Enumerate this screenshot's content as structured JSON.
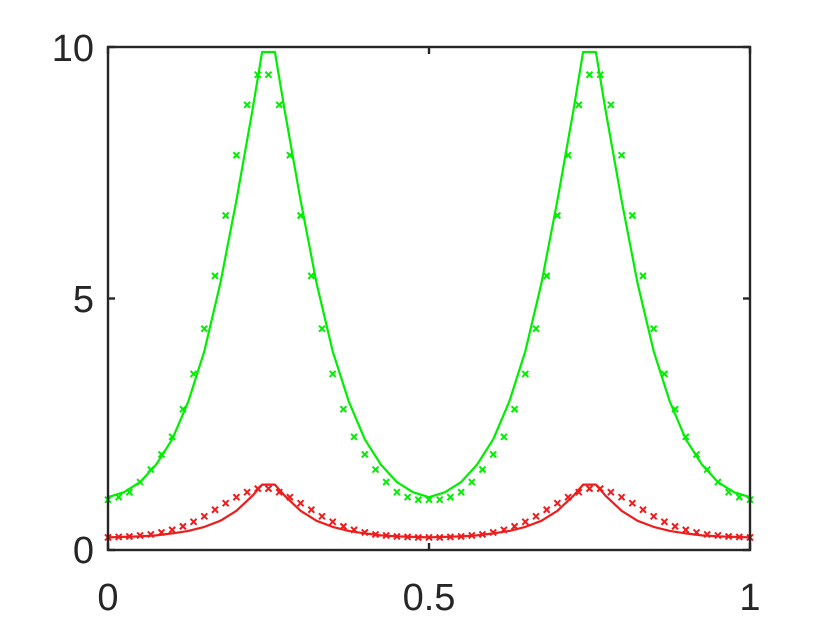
{
  "chart_data": {
    "type": "line",
    "title": "",
    "xlabel": "",
    "ylabel": "",
    "xlim": [
      0,
      1
    ],
    "ylim": [
      0,
      10
    ],
    "xticks": [
      0,
      0.5,
      1
    ],
    "xtick_labels": [
      "0",
      "0.5",
      "1"
    ],
    "yticks": [
      0,
      5,
      10
    ],
    "ytick_labels": [
      "0",
      "5",
      "10"
    ],
    "grid": false,
    "box": true,
    "series": [
      {
        "color": "#00ee00",
        "style": "solid line",
        "x": [
          0.0,
          0.025,
          0.05,
          0.075,
          0.1,
          0.125,
          0.15,
          0.175,
          0.2,
          0.225,
          0.24,
          0.26,
          0.275,
          0.3,
          0.325,
          0.35,
          0.375,
          0.4,
          0.425,
          0.45,
          0.475,
          0.5,
          0.525,
          0.55,
          0.575,
          0.6,
          0.625,
          0.65,
          0.675,
          0.7,
          0.725,
          0.74,
          0.76,
          0.775,
          0.8,
          0.825,
          0.85,
          0.875,
          0.9,
          0.925,
          0.95,
          0.975,
          1.0
        ],
        "y": [
          1.05,
          1.15,
          1.35,
          1.7,
          2.2,
          2.95,
          3.95,
          5.3,
          6.95,
          8.75,
          9.9,
          9.9,
          8.75,
          6.95,
          5.3,
          3.95,
          2.95,
          2.2,
          1.7,
          1.35,
          1.15,
          1.05,
          1.15,
          1.35,
          1.7,
          2.2,
          2.95,
          3.95,
          5.3,
          6.95,
          8.75,
          9.9,
          9.9,
          8.75,
          6.95,
          5.3,
          3.95,
          2.95,
          2.2,
          1.7,
          1.35,
          1.15,
          1.05
        ]
      },
      {
        "color": "#00ee00",
        "style": "x markers",
        "x": [
          0.0,
          0.0167,
          0.0333,
          0.05,
          0.0667,
          0.0833,
          0.1,
          0.1167,
          0.1333,
          0.15,
          0.1667,
          0.1833,
          0.2,
          0.2167,
          0.2333,
          0.25,
          0.2667,
          0.2833,
          0.3,
          0.3167,
          0.3333,
          0.35,
          0.3667,
          0.3833,
          0.4,
          0.4167,
          0.4333,
          0.45,
          0.4667,
          0.4833,
          0.5,
          0.5167,
          0.5333,
          0.55,
          0.5667,
          0.5833,
          0.6,
          0.6167,
          0.6333,
          0.65,
          0.6667,
          0.6833,
          0.7,
          0.7167,
          0.7333,
          0.75,
          0.7667,
          0.7833,
          0.8,
          0.8167,
          0.8333,
          0.85,
          0.8667,
          0.8833,
          0.9,
          0.9167,
          0.9333,
          0.95,
          0.9667,
          0.9833,
          1.0
        ],
        "y": [
          1.0,
          1.05,
          1.15,
          1.35,
          1.6,
          1.9,
          2.25,
          2.8,
          3.5,
          4.4,
          5.45,
          6.65,
          7.85,
          8.85,
          9.45,
          9.45,
          8.85,
          7.85,
          6.65,
          5.45,
          4.4,
          3.5,
          2.8,
          2.25,
          1.9,
          1.6,
          1.35,
          1.15,
          1.05,
          1.0,
          1.0,
          1.0,
          1.05,
          1.15,
          1.35,
          1.6,
          1.9,
          2.25,
          2.8,
          3.5,
          4.4,
          5.45,
          6.65,
          7.85,
          8.85,
          9.45,
          9.45,
          8.85,
          7.85,
          6.65,
          5.45,
          4.4,
          3.5,
          2.8,
          2.25,
          1.9,
          1.6,
          1.35,
          1.15,
          1.05,
          1.0
        ]
      },
      {
        "color": "#ee1c1c",
        "style": "solid line",
        "x": [
          0.0,
          0.025,
          0.05,
          0.075,
          0.1,
          0.125,
          0.15,
          0.175,
          0.2,
          0.225,
          0.24,
          0.26,
          0.275,
          0.3,
          0.325,
          0.35,
          0.375,
          0.4,
          0.425,
          0.45,
          0.475,
          0.5,
          0.525,
          0.55,
          0.575,
          0.6,
          0.625,
          0.65,
          0.675,
          0.7,
          0.725,
          0.74,
          0.76,
          0.775,
          0.8,
          0.825,
          0.85,
          0.875,
          0.9,
          0.925,
          0.95,
          0.975,
          1.0
        ],
        "y": [
          0.25,
          0.26,
          0.27,
          0.29,
          0.33,
          0.38,
          0.46,
          0.58,
          0.78,
          1.08,
          1.3,
          1.3,
          1.08,
          0.78,
          0.58,
          0.46,
          0.38,
          0.33,
          0.29,
          0.27,
          0.26,
          0.25,
          0.26,
          0.27,
          0.29,
          0.33,
          0.38,
          0.46,
          0.58,
          0.78,
          1.08,
          1.3,
          1.3,
          1.08,
          0.78,
          0.58,
          0.46,
          0.38,
          0.33,
          0.29,
          0.27,
          0.26,
          0.25
        ]
      },
      {
        "color": "#ee1c1c",
        "style": "x markers",
        "x": [
          0.0,
          0.0167,
          0.0333,
          0.05,
          0.0667,
          0.0833,
          0.1,
          0.1167,
          0.1333,
          0.15,
          0.1667,
          0.1833,
          0.2,
          0.2167,
          0.2333,
          0.25,
          0.2667,
          0.2833,
          0.3,
          0.3167,
          0.3333,
          0.35,
          0.3667,
          0.3833,
          0.4,
          0.4167,
          0.4333,
          0.45,
          0.4667,
          0.4833,
          0.5,
          0.5167,
          0.5333,
          0.55,
          0.5667,
          0.5833,
          0.6,
          0.6167,
          0.6333,
          0.65,
          0.6667,
          0.6833,
          0.7,
          0.7167,
          0.7333,
          0.75,
          0.7667,
          0.7833,
          0.8,
          0.8167,
          0.8333,
          0.85,
          0.8667,
          0.8833,
          0.9,
          0.9167,
          0.9333,
          0.95,
          0.9667,
          0.9833,
          1.0
        ],
        "y": [
          0.25,
          0.26,
          0.27,
          0.29,
          0.31,
          0.35,
          0.4,
          0.47,
          0.56,
          0.67,
          0.8,
          0.93,
          1.05,
          1.15,
          1.22,
          1.22,
          1.15,
          1.05,
          0.93,
          0.8,
          0.67,
          0.56,
          0.47,
          0.4,
          0.35,
          0.31,
          0.29,
          0.27,
          0.26,
          0.25,
          0.25,
          0.25,
          0.26,
          0.27,
          0.29,
          0.31,
          0.35,
          0.4,
          0.47,
          0.56,
          0.67,
          0.8,
          0.93,
          1.05,
          1.15,
          1.22,
          1.22,
          1.15,
          1.05,
          0.93,
          0.8,
          0.67,
          0.56,
          0.47,
          0.4,
          0.35,
          0.31,
          0.29,
          0.27,
          0.26,
          0.25
        ]
      }
    ]
  }
}
